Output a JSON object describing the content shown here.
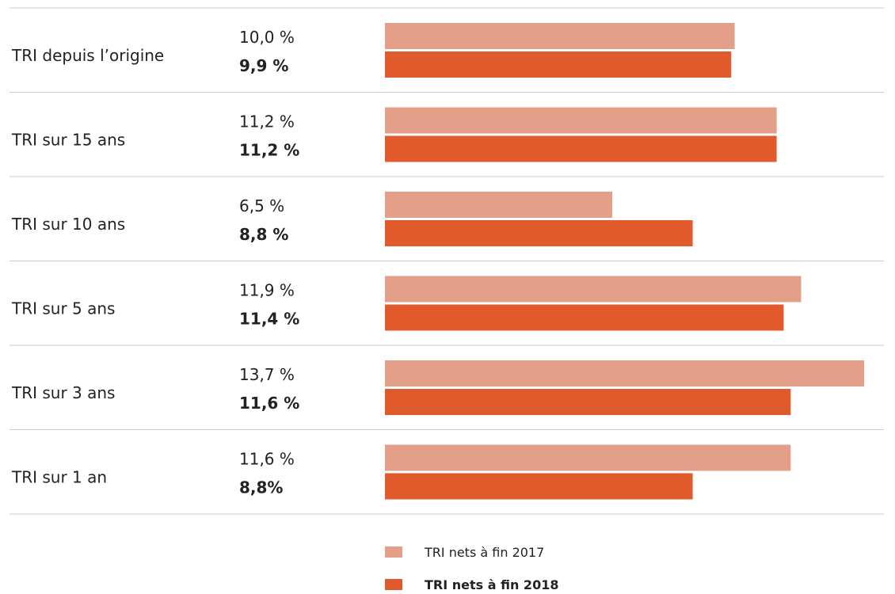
{
  "colors": {
    "series_2017": "#e39f88",
    "series_2018": "#e05a2b",
    "divider": "#c5ced6"
  },
  "chart_data": {
    "type": "bar",
    "orientation": "horizontal",
    "categories": [
      "TRI depuis l’origine",
      "TRI sur 15 ans",
      "TRI sur 10 ans",
      "TRI sur 5 ans",
      "TRI sur 3 ans",
      "TRI sur 1 an"
    ],
    "series": [
      {
        "name": "TRI nets à fin 2017",
        "values": [
          10.0,
          11.2,
          6.5,
          11.9,
          13.7,
          11.6
        ],
        "labels": [
          "10,0 %",
          "11,2 %",
          "6,5 %",
          "11,9 %",
          "13,7 %",
          "11,6 %"
        ]
      },
      {
        "name": "TRI nets à fin 2018",
        "values": [
          9.9,
          11.2,
          8.8,
          11.4,
          11.6,
          8.8
        ],
        "labels": [
          "9,9 %",
          "11,2 %",
          "8,8 %",
          "11,4 %",
          "11,6 %",
          "8,8%"
        ]
      }
    ],
    "xlim": [
      0,
      13.7
    ],
    "unit": "%",
    "legend_position": "bottom-center",
    "grid": false
  }
}
